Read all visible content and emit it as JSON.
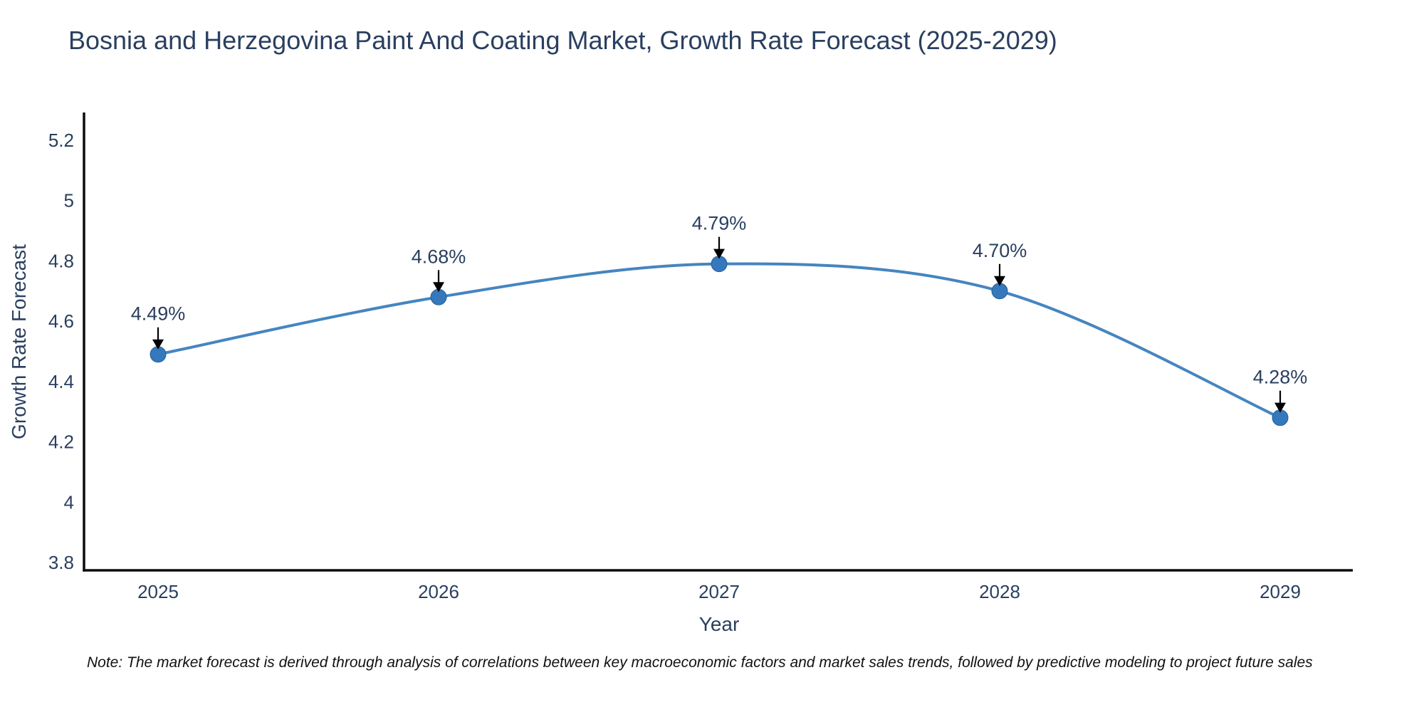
{
  "chart_data": {
    "type": "line",
    "title": "Bosnia and Herzegovina Paint And Coating Market, Growth Rate Forecast (2025-2029)",
    "xlabel": "Year",
    "ylabel": "Growth Rate Forecast",
    "categories": [
      "2025",
      "2026",
      "2027",
      "2028",
      "2029"
    ],
    "values": [
      4.49,
      4.68,
      4.79,
      4.7,
      4.28
    ],
    "point_labels": [
      "4.49%",
      "4.68%",
      "4.79%",
      "4.70%",
      "4.28%"
    ],
    "ytick_values": [
      3.8,
      4.0,
      4.2,
      4.4,
      4.6,
      4.8,
      5.0,
      5.2
    ],
    "ytick_labels": [
      "3.8",
      "4",
      "4.2",
      "4.4",
      "4.6",
      "4.8",
      "5",
      "5.2"
    ],
    "ylim": [
      3.77,
      5.29
    ],
    "grid": false,
    "legend": "none",
    "line_shape": "spline",
    "annotation_arrows": "down",
    "colors": {
      "line": "#4585c0",
      "marker": "#3578bc",
      "marker_edge": "#2a5f96",
      "axis": "#0d0d0d",
      "text": "#2a3f5f",
      "arrow": "#000000",
      "note_text": "#111111"
    },
    "note": "Note: The market forecast is derived through analysis of correlations between key macroeconomic factors and market sales trends, followed by predictive modeling to project future sales"
  }
}
